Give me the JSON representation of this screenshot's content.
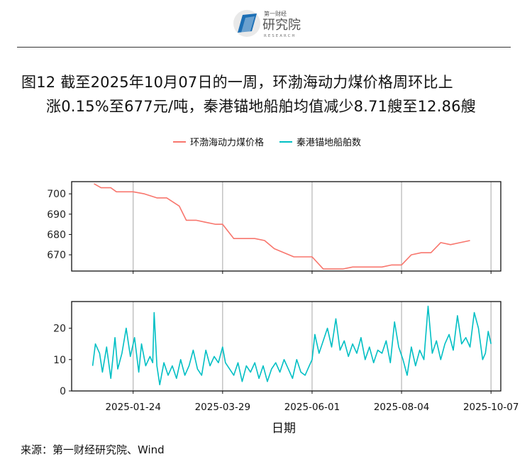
{
  "header": {
    "logo_text_top": "第一财经",
    "logo_text_main": "研究院",
    "logo_text_sub": "RESEARCH"
  },
  "title": {
    "line1": "图12  截至2025年10月07日的一周，环渤海动力煤价格周环比上",
    "line2": "涨0.15%至677元/吨，秦港锚地船舶均值减少8.71艘至12.86艘"
  },
  "legend": [
    {
      "label": "环渤海动力煤价格",
      "color": "#F8766D"
    },
    {
      "label": "秦港锚地船舶数",
      "color": "#00BFC4"
    }
  ],
  "xlabel": "日期",
  "source": "来源：第一财经研究院、Wind",
  "colors": {
    "price": "#F8766D",
    "ships": "#00BFC4",
    "grid": "#b5b5b5"
  },
  "chart_data": [
    {
      "type": "line",
      "series": [
        {
          "name": "环渤海动力煤价格",
          "color": "#F8766D"
        }
      ],
      "x_range": [
        "2024-12-11",
        "2025-10-14"
      ],
      "ylim": [
        662,
        706
      ],
      "y_ticks": [
        670,
        680,
        690,
        700
      ],
      "x_ticks": [
        "2025-01-24",
        "2025-03-29",
        "2025-06-01",
        "2025-08-04",
        "2025-10-07"
      ],
      "points": [
        [
          "2024-12-27",
          705
        ],
        [
          "2025-01-01",
          703
        ],
        [
          "2025-01-08",
          703
        ],
        [
          "2025-01-12",
          701
        ],
        [
          "2025-01-24",
          701
        ],
        [
          "2025-02-01",
          700
        ],
        [
          "2025-02-10",
          698
        ],
        [
          "2025-02-17",
          698
        ],
        [
          "2025-02-26",
          694
        ],
        [
          "2025-03-03",
          687
        ],
        [
          "2025-03-10",
          687
        ],
        [
          "2025-03-17",
          686
        ],
        [
          "2025-03-24",
          685
        ],
        [
          "2025-03-29",
          685
        ],
        [
          "2025-04-06",
          678
        ],
        [
          "2025-04-13",
          678
        ],
        [
          "2025-04-21",
          678
        ],
        [
          "2025-04-28",
          677
        ],
        [
          "2025-05-05",
          673
        ],
        [
          "2025-05-12",
          671
        ],
        [
          "2025-05-19",
          669
        ],
        [
          "2025-05-26",
          669
        ],
        [
          "2025-06-01",
          669
        ],
        [
          "2025-06-09",
          663
        ],
        [
          "2025-06-17",
          663
        ],
        [
          "2025-06-23",
          663
        ],
        [
          "2025-06-30",
          664
        ],
        [
          "2025-07-07",
          664
        ],
        [
          "2025-07-14",
          664
        ],
        [
          "2025-07-21",
          664
        ],
        [
          "2025-07-28",
          665
        ],
        [
          "2025-08-04",
          665
        ],
        [
          "2025-08-11",
          670
        ],
        [
          "2025-08-18",
          671
        ],
        [
          "2025-08-25",
          671
        ],
        [
          "2025-09-01",
          676
        ],
        [
          "2025-09-08",
          675
        ],
        [
          "2025-09-15",
          676
        ],
        [
          "2025-09-22",
          677
        ]
      ]
    },
    {
      "type": "line",
      "series": [
        {
          "name": "秦港锚地船舶数",
          "color": "#00BFC4"
        }
      ],
      "x_range": [
        "2024-12-11",
        "2025-10-14"
      ],
      "ylim": [
        0,
        28.5
      ],
      "y_ticks": [
        0,
        10,
        20
      ],
      "x_ticks": [
        "2025-01-24",
        "2025-03-29",
        "2025-06-01",
        "2025-08-04",
        "2025-10-07"
      ],
      "points": [
        [
          "2024-12-26",
          8
        ],
        [
          "2024-12-28",
          15
        ],
        [
          "2024-12-31",
          12
        ],
        [
          "2025-01-02",
          6
        ],
        [
          "2025-01-05",
          14
        ],
        [
          "2025-01-08",
          4
        ],
        [
          "2025-01-11",
          17
        ],
        [
          "2025-01-13",
          7
        ],
        [
          "2025-01-16",
          12
        ],
        [
          "2025-01-19",
          20
        ],
        [
          "2025-01-22",
          11
        ],
        [
          "2025-01-25",
          17
        ],
        [
          "2025-01-28",
          6
        ],
        [
          "2025-01-30",
          15
        ],
        [
          "2025-02-02",
          8
        ],
        [
          "2025-02-05",
          11
        ],
        [
          "2025-02-07",
          9
        ],
        [
          "2025-02-08",
          25
        ],
        [
          "2025-02-10",
          8
        ],
        [
          "2025-02-12",
          2
        ],
        [
          "2025-02-15",
          9
        ],
        [
          "2025-02-18",
          5
        ],
        [
          "2025-02-21",
          8
        ],
        [
          "2025-02-24",
          4
        ],
        [
          "2025-02-27",
          10
        ],
        [
          "2025-03-02",
          5
        ],
        [
          "2025-03-05",
          8
        ],
        [
          "2025-03-08",
          13
        ],
        [
          "2025-03-11",
          7
        ],
        [
          "2025-03-14",
          5
        ],
        [
          "2025-03-17",
          13
        ],
        [
          "2025-03-20",
          8
        ],
        [
          "2025-03-23",
          11
        ],
        [
          "2025-03-26",
          9
        ],
        [
          "2025-03-29",
          14
        ],
        [
          "2025-03-31",
          9
        ],
        [
          "2025-04-03",
          7
        ],
        [
          "2025-04-06",
          5
        ],
        [
          "2025-04-09",
          9
        ],
        [
          "2025-04-12",
          3
        ],
        [
          "2025-04-15",
          8
        ],
        [
          "2025-04-18",
          6
        ],
        [
          "2025-04-21",
          9
        ],
        [
          "2025-04-24",
          4
        ],
        [
          "2025-04-27",
          8
        ],
        [
          "2025-04-30",
          3
        ],
        [
          "2025-05-03",
          7
        ],
        [
          "2025-05-06",
          9
        ],
        [
          "2025-05-09",
          6
        ],
        [
          "2025-05-12",
          10
        ],
        [
          "2025-05-15",
          7
        ],
        [
          "2025-05-18",
          4
        ],
        [
          "2025-05-21",
          10
        ],
        [
          "2025-05-24",
          6
        ],
        [
          "2025-05-27",
          5
        ],
        [
          "2025-05-30",
          8
        ],
        [
          "2025-06-01",
          10
        ],
        [
          "2025-06-03",
          18
        ],
        [
          "2025-06-06",
          12
        ],
        [
          "2025-06-09",
          16
        ],
        [
          "2025-06-12",
          20
        ],
        [
          "2025-06-15",
          14
        ],
        [
          "2025-06-18",
          23
        ],
        [
          "2025-06-21",
          13
        ],
        [
          "2025-06-24",
          16
        ],
        [
          "2025-06-27",
          11
        ],
        [
          "2025-06-30",
          15
        ],
        [
          "2025-07-03",
          12
        ],
        [
          "2025-07-06",
          17
        ],
        [
          "2025-07-09",
          10
        ],
        [
          "2025-07-12",
          14
        ],
        [
          "2025-07-15",
          9
        ],
        [
          "2025-07-18",
          13
        ],
        [
          "2025-07-21",
          12
        ],
        [
          "2025-07-24",
          16
        ],
        [
          "2025-07-27",
          9
        ],
        [
          "2025-07-30",
          22
        ],
        [
          "2025-08-02",
          14
        ],
        [
          "2025-08-05",
          10
        ],
        [
          "2025-08-08",
          5
        ],
        [
          "2025-08-11",
          14
        ],
        [
          "2025-08-14",
          8
        ],
        [
          "2025-08-17",
          13
        ],
        [
          "2025-08-20",
          10
        ],
        [
          "2025-08-23",
          27
        ],
        [
          "2025-08-26",
          12
        ],
        [
          "2025-08-29",
          16
        ],
        [
          "2025-09-01",
          10
        ],
        [
          "2025-09-04",
          15
        ],
        [
          "2025-09-07",
          18
        ],
        [
          "2025-09-10",
          13
        ],
        [
          "2025-09-13",
          24
        ],
        [
          "2025-09-16",
          15
        ],
        [
          "2025-09-19",
          17
        ],
        [
          "2025-09-22",
          14
        ],
        [
          "2025-09-25",
          25
        ],
        [
          "2025-09-28",
          20
        ],
        [
          "2025-10-01",
          10
        ],
        [
          "2025-10-03",
          12
        ],
        [
          "2025-10-05",
          19
        ],
        [
          "2025-10-07",
          15
        ]
      ]
    }
  ]
}
